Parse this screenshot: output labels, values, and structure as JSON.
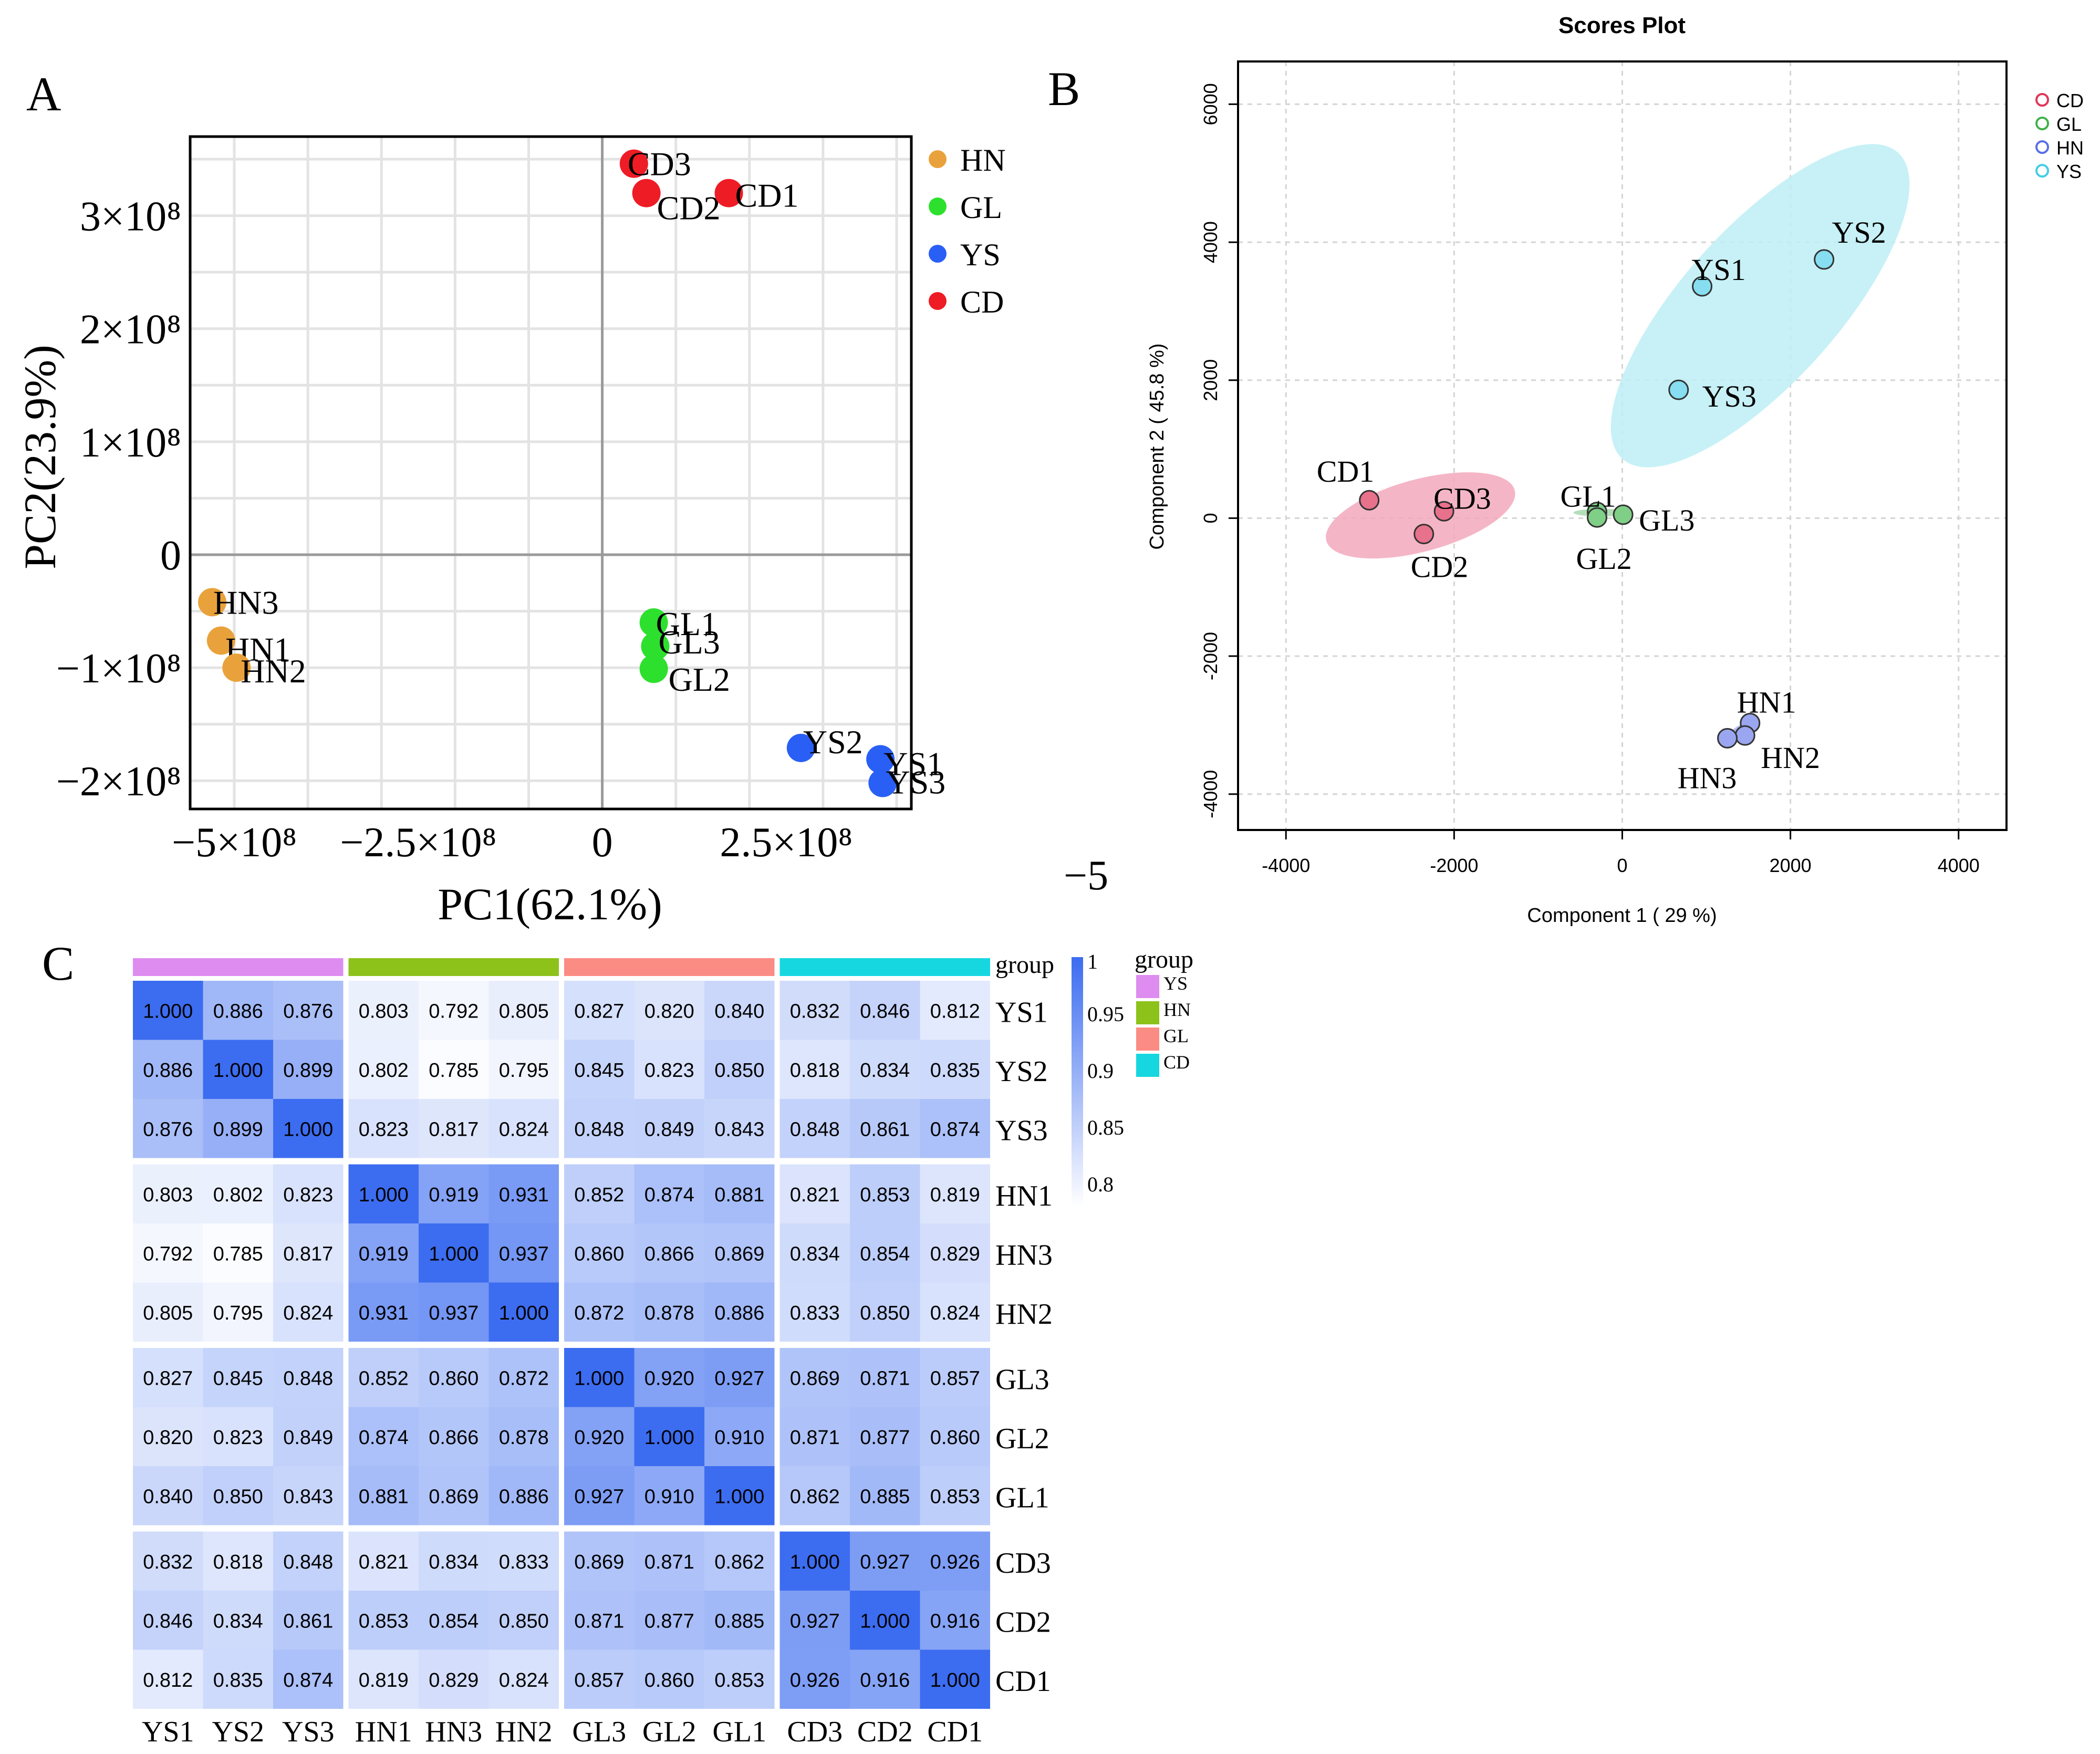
{
  "panels": {
    "a": "A",
    "b": "B",
    "c": "C",
    "stray": "−5"
  },
  "chart_data": [
    {
      "type": "scatter",
      "panel": "A",
      "title": "",
      "xlabel": "PC1(62.1%)",
      "ylabel": "PC2(23.9%)",
      "xlim": [
        -560000000,
        420000000
      ],
      "ylim": [
        -225000000,
        370000000
      ],
      "x_ticks": [
        -500000000,
        -250000000,
        0,
        250000000
      ],
      "x_tick_labels": [
        "−5×10⁸",
        "−2.5×10⁸",
        "0",
        "2.5×10⁸"
      ],
      "y_ticks": [
        -200000000,
        -100000000,
        0,
        100000000,
        200000000,
        300000000
      ],
      "y_tick_labels": [
        "−2×10⁸",
        "−1×10⁸",
        "0",
        "1×10⁸",
        "2×10⁸",
        "3×10⁸"
      ],
      "grid": true,
      "legend_position": "right",
      "legend": [
        {
          "name": "HN",
          "color": "#e9a23b"
        },
        {
          "name": "GL",
          "color": "#2ee02e"
        },
        {
          "name": "YS",
          "color": "#2a5ff5"
        },
        {
          "name": "CD",
          "color": "#ee1c25"
        }
      ],
      "points": [
        {
          "label": "CD3",
          "group": "CD",
          "x": 43000000,
          "y": 346000000
        },
        {
          "label": "CD2",
          "group": "CD",
          "x": 60000000,
          "y": 320000000
        },
        {
          "label": "CD1",
          "group": "CD",
          "x": 172000000,
          "y": 320000000
        },
        {
          "label": "HN3",
          "group": "HN",
          "x": -530000000,
          "y": -42000000
        },
        {
          "label": "HN1",
          "group": "HN",
          "x": -518000000,
          "y": -76000000
        },
        {
          "label": "HN2",
          "group": "HN",
          "x": -497000000,
          "y": -100000000
        },
        {
          "label": "GL1",
          "group": "GL",
          "x": 70000000,
          "y": -60000000
        },
        {
          "label": "GL3",
          "group": "GL",
          "x": 72000000,
          "y": -81000000
        },
        {
          "label": "GL2",
          "group": "GL",
          "x": 70000000,
          "y": -101000000
        },
        {
          "label": "YS2",
          "group": "YS",
          "x": 270000000,
          "y": -171000000
        },
        {
          "label": "YS1",
          "group": "YS",
          "x": 378000000,
          "y": -181000000
        },
        {
          "label": "YS3",
          "group": "YS",
          "x": 381000000,
          "y": -202000000
        }
      ]
    },
    {
      "type": "scatter",
      "panel": "B",
      "title": "Scores Plot",
      "xlabel": "Component 1 ( 29 %)",
      "ylabel": "Component 2 ( 45.8 %)",
      "xlim": [
        -4570,
        4570
      ],
      "ylim": [
        -4520,
        6620
      ],
      "x_ticks": [
        -4000,
        -2000,
        0,
        2000,
        4000
      ],
      "y_ticks": [
        -4000,
        -2000,
        0,
        2000,
        4000,
        6000
      ],
      "grid": true,
      "legend_position": "right",
      "legend": [
        {
          "name": "CD",
          "color": "#e0365b"
        },
        {
          "name": "GL",
          "color": "#41b14b"
        },
        {
          "name": "HN",
          "color": "#5a6fe8"
        },
        {
          "name": "YS",
          "color": "#43cde6"
        }
      ],
      "ellipses": [
        {
          "group": "CD",
          "color": "#f2a9bc",
          "cx": -2400,
          "cy": 40,
          "rx": 1160,
          "ry": 430,
          "angle_deg": -15
        },
        {
          "group": "GL",
          "color": "#a7d8ab",
          "cx": -250,
          "cy": 80,
          "rx": 330,
          "ry": 45,
          "angle_deg": 0
        },
        {
          "group": "HN",
          "color": "#aab2ec",
          "cx": 1420,
          "cy": -3060,
          "rx": 240,
          "ry": 55,
          "angle_deg": -30
        },
        {
          "group": "YS",
          "color": "#bdeef5",
          "cx": 1640,
          "cy": 3080,
          "rx": 2450,
          "ry": 920,
          "angle_deg": -48
        }
      ],
      "points": [
        {
          "label": "CD1",
          "group": "CD",
          "x": -3010,
          "y": 260
        },
        {
          "label": "CD3",
          "group": "CD",
          "x": -2120,
          "y": 100
        },
        {
          "label": "CD2",
          "group": "CD",
          "x": -2360,
          "y": -230
        },
        {
          "label": "GL1",
          "group": "GL",
          "x": -300,
          "y": 90
        },
        {
          "label": "GL2",
          "group": "GL",
          "x": -300,
          "y": 10
        },
        {
          "label": "GL3",
          "group": "GL",
          "x": 10,
          "y": 50
        },
        {
          "label": "YS1",
          "group": "YS",
          "x": 950,
          "y": 3360
        },
        {
          "label": "YS2",
          "group": "YS",
          "x": 2400,
          "y": 3750
        },
        {
          "label": "YS3",
          "group": "YS",
          "x": 670,
          "y": 1860
        },
        {
          "label": "HN1",
          "group": "HN",
          "x": 1520,
          "y": -2970
        },
        {
          "label": "HN2",
          "group": "HN",
          "x": 1460,
          "y": -3150
        },
        {
          "label": "HN3",
          "group": "HN",
          "x": 1250,
          "y": -3190
        }
      ]
    },
    {
      "type": "heatmap",
      "panel": "C",
      "title": "",
      "columns": [
        "YS1",
        "YS2",
        "YS3",
        "HN1",
        "HN3",
        "HN2",
        "GL3",
        "GL2",
        "GL1",
        "CD3",
        "CD2",
        "CD1"
      ],
      "rows": [
        "YS1",
        "YS2",
        "YS3",
        "HN1",
        "HN3",
        "HN2",
        "GL3",
        "GL2",
        "GL1",
        "CD3",
        "CD2",
        "CD1"
      ],
      "column_groups": [
        "YS",
        "YS",
        "YS",
        "HN",
        "HN",
        "HN",
        "GL",
        "GL",
        "GL",
        "CD",
        "CD",
        "CD"
      ],
      "values": [
        [
          "1.000",
          "0.886",
          "0.876",
          "0.803",
          "0.792",
          "0.805",
          "0.827",
          "0.820",
          "0.840",
          "0.832",
          "0.846",
          "0.812"
        ],
        [
          "0.886",
          "1.000",
          "0.899",
          "0.802",
          "0.785",
          "0.795",
          "0.845",
          "0.823",
          "0.850",
          "0.818",
          "0.834",
          "0.835"
        ],
        [
          "0.876",
          "0.899",
          "1.000",
          "0.823",
          "0.817",
          "0.824",
          "0.848",
          "0.849",
          "0.843",
          "0.848",
          "0.861",
          "0.874"
        ],
        [
          "0.803",
          "0.802",
          "0.823",
          "1.000",
          "0.919",
          "0.931",
          "0.852",
          "0.874",
          "0.881",
          "0.821",
          "0.853",
          "0.819"
        ],
        [
          "0.792",
          "0.785",
          "0.817",
          "0.919",
          "1.000",
          "0.937",
          "0.860",
          "0.866",
          "0.869",
          "0.834",
          "0.854",
          "0.829"
        ],
        [
          "0.805",
          "0.795",
          "0.824",
          "0.931",
          "0.937",
          "1.000",
          "0.872",
          "0.878",
          "0.886",
          "0.833",
          "0.850",
          "0.824"
        ],
        [
          "0.827",
          "0.845",
          "0.848",
          "0.852",
          "0.860",
          "0.872",
          "1.000",
          "0.920",
          "0.927",
          "0.869",
          "0.871",
          "0.857"
        ],
        [
          "0.820",
          "0.823",
          "0.849",
          "0.874",
          "0.866",
          "0.878",
          "0.920",
          "1.000",
          "0.910",
          "0.871",
          "0.877",
          "0.860"
        ],
        [
          "0.840",
          "0.850",
          "0.843",
          "0.881",
          "0.869",
          "0.886",
          "0.927",
          "0.910",
          "1.000",
          "0.862",
          "0.885",
          "0.853"
        ],
        [
          "0.832",
          "0.818",
          "0.848",
          "0.821",
          "0.834",
          "0.833",
          "0.869",
          "0.871",
          "0.862",
          "1.000",
          "0.927",
          "0.926"
        ],
        [
          "0.846",
          "0.834",
          "0.861",
          "0.853",
          "0.854",
          "0.850",
          "0.871",
          "0.877",
          "0.885",
          "0.927",
          "1.000",
          "0.916"
        ],
        [
          "0.812",
          "0.835",
          "0.874",
          "0.819",
          "0.829",
          "0.824",
          "0.857",
          "0.860",
          "0.853",
          "0.926",
          "0.916",
          "1.000"
        ]
      ],
      "color_range": [
        0.78,
        1.0
      ],
      "colors": {
        "low": "#ffffff",
        "high": "#3c6cf0"
      },
      "colorbar_ticks": [
        1,
        0.95,
        0.9,
        0.85,
        0.8
      ],
      "colorbar_tick_labels": [
        "1",
        "0.95",
        "0.9",
        "0.85",
        "0.8"
      ],
      "annotation_title": "group",
      "legend_title": "group",
      "group_legend": [
        {
          "name": "YS",
          "color": "#de8cf0"
        },
        {
          "name": "HN",
          "color": "#8cc21a"
        },
        {
          "name": "GL",
          "color": "#fb8c84"
        },
        {
          "name": "CD",
          "color": "#16d7df"
        }
      ]
    }
  ]
}
